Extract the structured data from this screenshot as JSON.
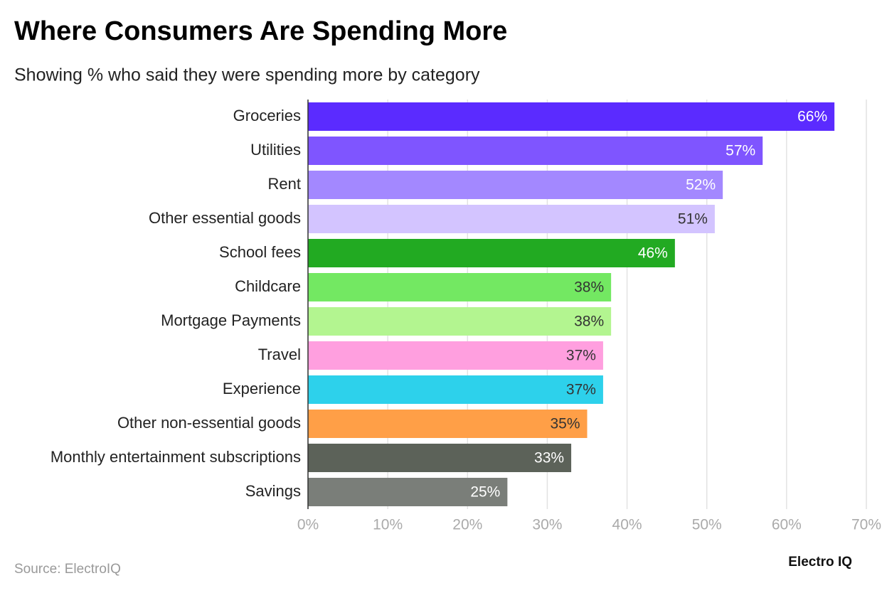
{
  "chart_data": {
    "type": "bar",
    "orientation": "horizontal",
    "title": "Where Consumers Are Spending More",
    "subtitle": "Showing % who said they were spending more by category",
    "categories": [
      "Groceries",
      "Utilities",
      "Rent",
      "Other essential goods",
      "School fees",
      "Childcare",
      "Mortgage Payments",
      "Travel",
      "Experience",
      "Other non-essential goods",
      "Monthly entertainment subscriptions",
      "Savings"
    ],
    "values": [
      66,
      57,
      52,
      51,
      46,
      38,
      38,
      37,
      37,
      35,
      33,
      25
    ],
    "value_labels": [
      "66%",
      "57%",
      "52%",
      "51%",
      "46%",
      "38%",
      "38%",
      "37%",
      "37%",
      "35%",
      "33%",
      "25%"
    ],
    "colors": [
      "#5b2bff",
      "#7f55ff",
      "#a388ff",
      "#d3c4ff",
      "#22aa22",
      "#73e862",
      "#b3f590",
      "#ff9fdf",
      "#2dd1eb",
      "#ff9f47",
      "#5c6259",
      "#7a7e79"
    ],
    "value_label_colors": [
      "#ffffff",
      "#ffffff",
      "#ffffff",
      "#333333",
      "#ffffff",
      "#333333",
      "#333333",
      "#333333",
      "#333333",
      "#333333",
      "#ffffff",
      "#ffffff"
    ],
    "xlim": [
      0,
      70
    ],
    "xticks": [
      {
        "value": 0,
        "label": "0%"
      },
      {
        "value": 10,
        "label": "10%"
      },
      {
        "value": 20,
        "label": "20%"
      },
      {
        "value": 30,
        "label": "30%"
      },
      {
        "value": 40,
        "label": "40%"
      },
      {
        "value": 50,
        "label": "50%"
      },
      {
        "value": 60,
        "label": "60%"
      },
      {
        "value": 70,
        "label": "70%"
      }
    ],
    "grid": true,
    "source": "Source: ElectroIQ",
    "brand": "Electro IQ"
  }
}
